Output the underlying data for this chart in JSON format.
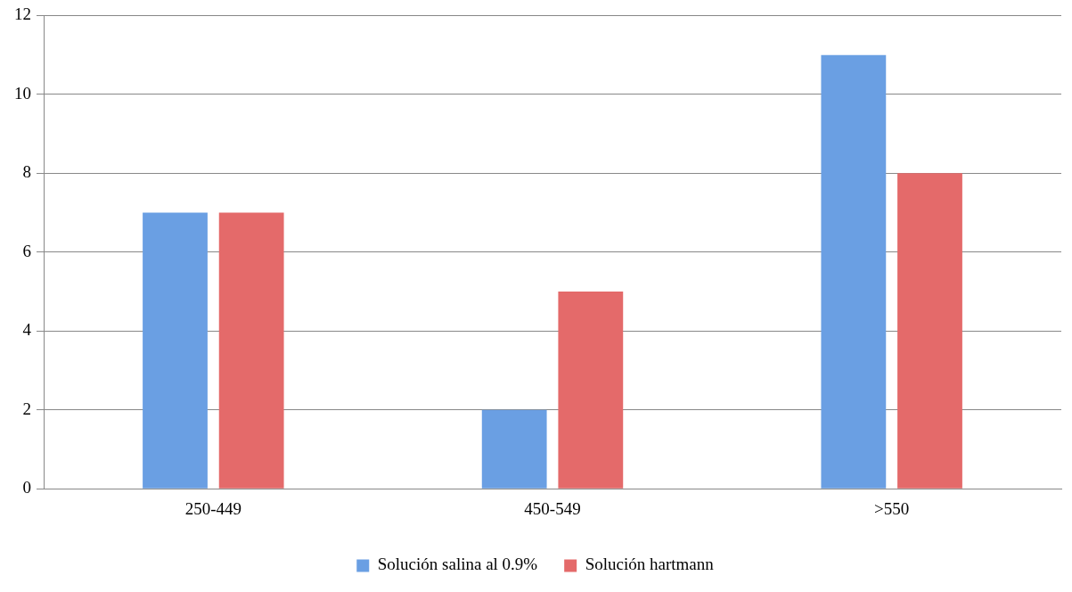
{
  "chart_data": {
    "type": "bar",
    "categories": [
      "250-449",
      "450-549",
      ">550"
    ],
    "series": [
      {
        "name": "Solución salina al 0.9%",
        "color": "#6a9fe3",
        "values": [
          7,
          2,
          11
        ]
      },
      {
        "name": "Solución hartmann",
        "color": "#e46a6a",
        "values": [
          7,
          5,
          8
        ]
      }
    ],
    "ylim": [
      0,
      12
    ],
    "yticks": [
      0,
      2,
      4,
      6,
      8,
      10,
      12
    ],
    "grid": "y",
    "legend": "bottom"
  }
}
